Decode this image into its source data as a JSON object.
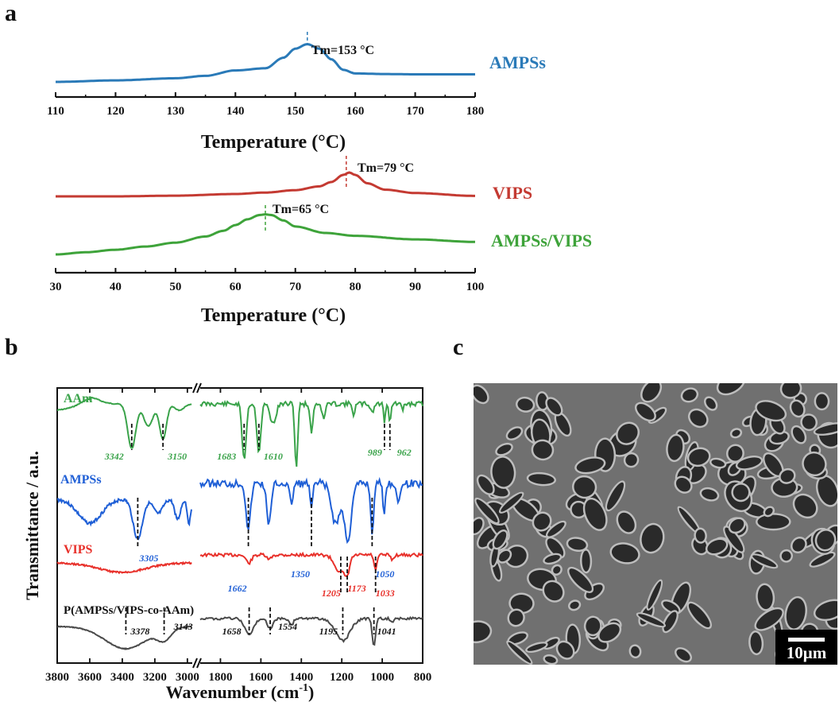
{
  "panel_labels": {
    "a": "a",
    "b": "b",
    "c": "c"
  },
  "colors": {
    "blue": "#2a7ab8",
    "red": "#c43a32",
    "green": "#3ea33a",
    "ftir_green": "#3aa34a",
    "ftir_blue": "#1f5fd6",
    "ftir_red": "#e8302a",
    "ftir_black": "#4a4a4a"
  },
  "chart_data": [
    {
      "type": "line",
      "xlabel": "Temperature (°C)",
      "xlim": [
        110,
        180
      ],
      "x_ticks": [
        "110",
        "120",
        "130",
        "140",
        "150",
        "160",
        "170",
        "180"
      ],
      "series": [
        {
          "name": "AMPSs",
          "color": "#2a7ab8",
          "x": [
            110,
            120,
            130,
            135,
            140,
            145,
            148,
            150,
            152,
            154,
            156,
            158,
            160,
            165,
            170,
            180
          ],
          "y": [
            0.0,
            0.05,
            0.12,
            0.2,
            0.38,
            0.45,
            0.8,
            1.1,
            1.25,
            1.1,
            0.75,
            0.4,
            0.28,
            0.26,
            0.25,
            0.25
          ]
        }
      ],
      "annotations": [
        {
          "text": "Tm=153 °C",
          "x": 152
        }
      ]
    },
    {
      "type": "line",
      "xlabel": "Temperature (°C)",
      "xlim": [
        30,
        100
      ],
      "x_ticks": [
        "30",
        "40",
        "50",
        "60",
        "70",
        "80",
        "90",
        "100"
      ],
      "series": [
        {
          "name": "VIPS",
          "color": "#c43a32",
          "x": [
            30,
            40,
            50,
            60,
            65,
            70,
            74,
            76,
            78,
            79,
            80,
            82,
            85,
            90,
            100
          ],
          "y": [
            0.0,
            0.0,
            0.03,
            0.1,
            0.16,
            0.26,
            0.42,
            0.6,
            0.9,
            1.0,
            0.9,
            0.55,
            0.28,
            0.14,
            0.02
          ]
        },
        {
          "name": "AMPSs/VIPS",
          "color": "#3ea33a",
          "x": [
            30,
            35,
            40,
            45,
            50,
            55,
            58,
            60,
            62,
            64,
            65,
            66,
            68,
            70,
            75,
            80,
            90,
            100
          ],
          "y": [
            0.0,
            0.06,
            0.13,
            0.22,
            0.33,
            0.5,
            0.66,
            0.82,
            0.98,
            1.1,
            1.12,
            1.1,
            0.95,
            0.78,
            0.6,
            0.52,
            0.42,
            0.35
          ]
        }
      ],
      "annotations": [
        {
          "text": "Tm=79 °C",
          "x": 78.5
        },
        {
          "text": "Tm=65 °C",
          "x": 65
        }
      ]
    },
    {
      "type": "line",
      "xlabel": "Wavenumber (cm⁻¹)",
      "ylabel": "Transmittance / a.u.",
      "x_ticks": [
        "3800",
        "3600",
        "3400",
        "3200",
        "3000",
        "1800",
        "1600",
        "1400",
        "1200",
        "1000",
        "800"
      ],
      "axis_break": true,
      "series": [
        {
          "name": "AAm",
          "peaks": [
            3342,
            3150,
            1683,
            1610,
            989,
            962
          ]
        },
        {
          "name": "AMPSs",
          "peaks": [
            3305,
            1662,
            1350,
            1050
          ]
        },
        {
          "name": "VIPS",
          "peaks": [
            1205,
            1173,
            1033
          ]
        },
        {
          "name": "P(AMPSs/VIPS-co-AAm)",
          "peaks": [
            3378,
            3143,
            1658,
            1554,
            1195,
            1041
          ]
        }
      ],
      "peak_labels": {
        "AAm": [
          "3342",
          "3150",
          "1683",
          "1610",
          "989",
          "962"
        ],
        "AMPSs": [
          "3305",
          "1662",
          "1350",
          "1050"
        ],
        "VIPS": [
          "1205",
          "1173",
          "1033"
        ],
        "P(AMPSs/VIPS-co-AAm)": [
          "3378",
          "3143",
          "1658",
          "1554",
          "1195",
          "1041"
        ]
      }
    }
  ],
  "scale_bar": "10μm"
}
